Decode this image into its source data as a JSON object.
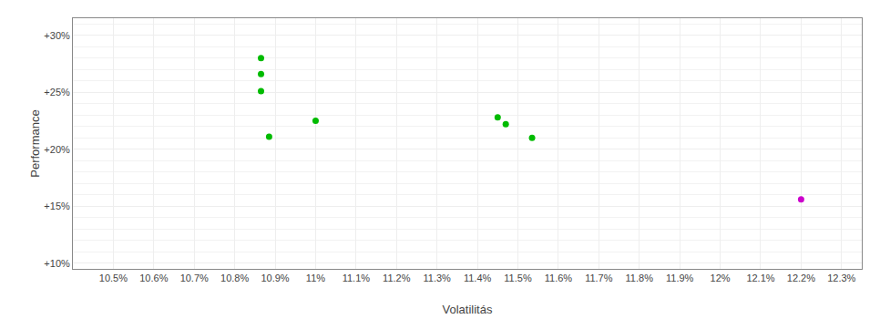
{
  "chart_data": {
    "type": "scatter",
    "xlabel": "Volatilitás",
    "ylabel": "Performance",
    "xlim": [
      10.4,
      12.35
    ],
    "ylim": [
      9.5,
      31.5
    ],
    "xticks": [
      {
        "value": 10.5,
        "label": "10.5%"
      },
      {
        "value": 10.6,
        "label": "10.6%"
      },
      {
        "value": 10.7,
        "label": "10.7%"
      },
      {
        "value": 10.8,
        "label": "10.8%"
      },
      {
        "value": 10.9,
        "label": "10.9%"
      },
      {
        "value": 11.0,
        "label": "11%"
      },
      {
        "value": 11.1,
        "label": "11.1%"
      },
      {
        "value": 11.2,
        "label": "11.2%"
      },
      {
        "value": 11.3,
        "label": "11.3%"
      },
      {
        "value": 11.4,
        "label": "11.4%"
      },
      {
        "value": 11.5,
        "label": "11.5%"
      },
      {
        "value": 11.6,
        "label": "11.6%"
      },
      {
        "value": 11.7,
        "label": "11.7%"
      },
      {
        "value": 11.8,
        "label": "11.8%"
      },
      {
        "value": 11.9,
        "label": "11.9%"
      },
      {
        "value": 12.0,
        "label": "12%"
      },
      {
        "value": 12.1,
        "label": "12.1%"
      },
      {
        "value": 12.2,
        "label": "12.2%"
      },
      {
        "value": 12.3,
        "label": "12.3%"
      }
    ],
    "yticks": [
      {
        "value": 10,
        "label": "+10%"
      },
      {
        "value": 15,
        "label": "+15%"
      },
      {
        "value": 20,
        "label": "+20%"
      },
      {
        "value": 25,
        "label": "+25%"
      },
      {
        "value": 30,
        "label": "+30%"
      }
    ],
    "grid": true,
    "series": [
      {
        "color": "#00bb00",
        "x": [
          10.865,
          10.865,
          10.865,
          10.885,
          11.0,
          11.45,
          11.47,
          11.535
        ],
        "values": [
          28.0,
          26.6,
          25.1,
          21.1,
          22.5,
          22.8,
          22.2,
          21.0
        ]
      },
      {
        "color": "#cc00cc",
        "x": [
          12.2
        ],
        "values": [
          15.6
        ]
      }
    ]
  }
}
